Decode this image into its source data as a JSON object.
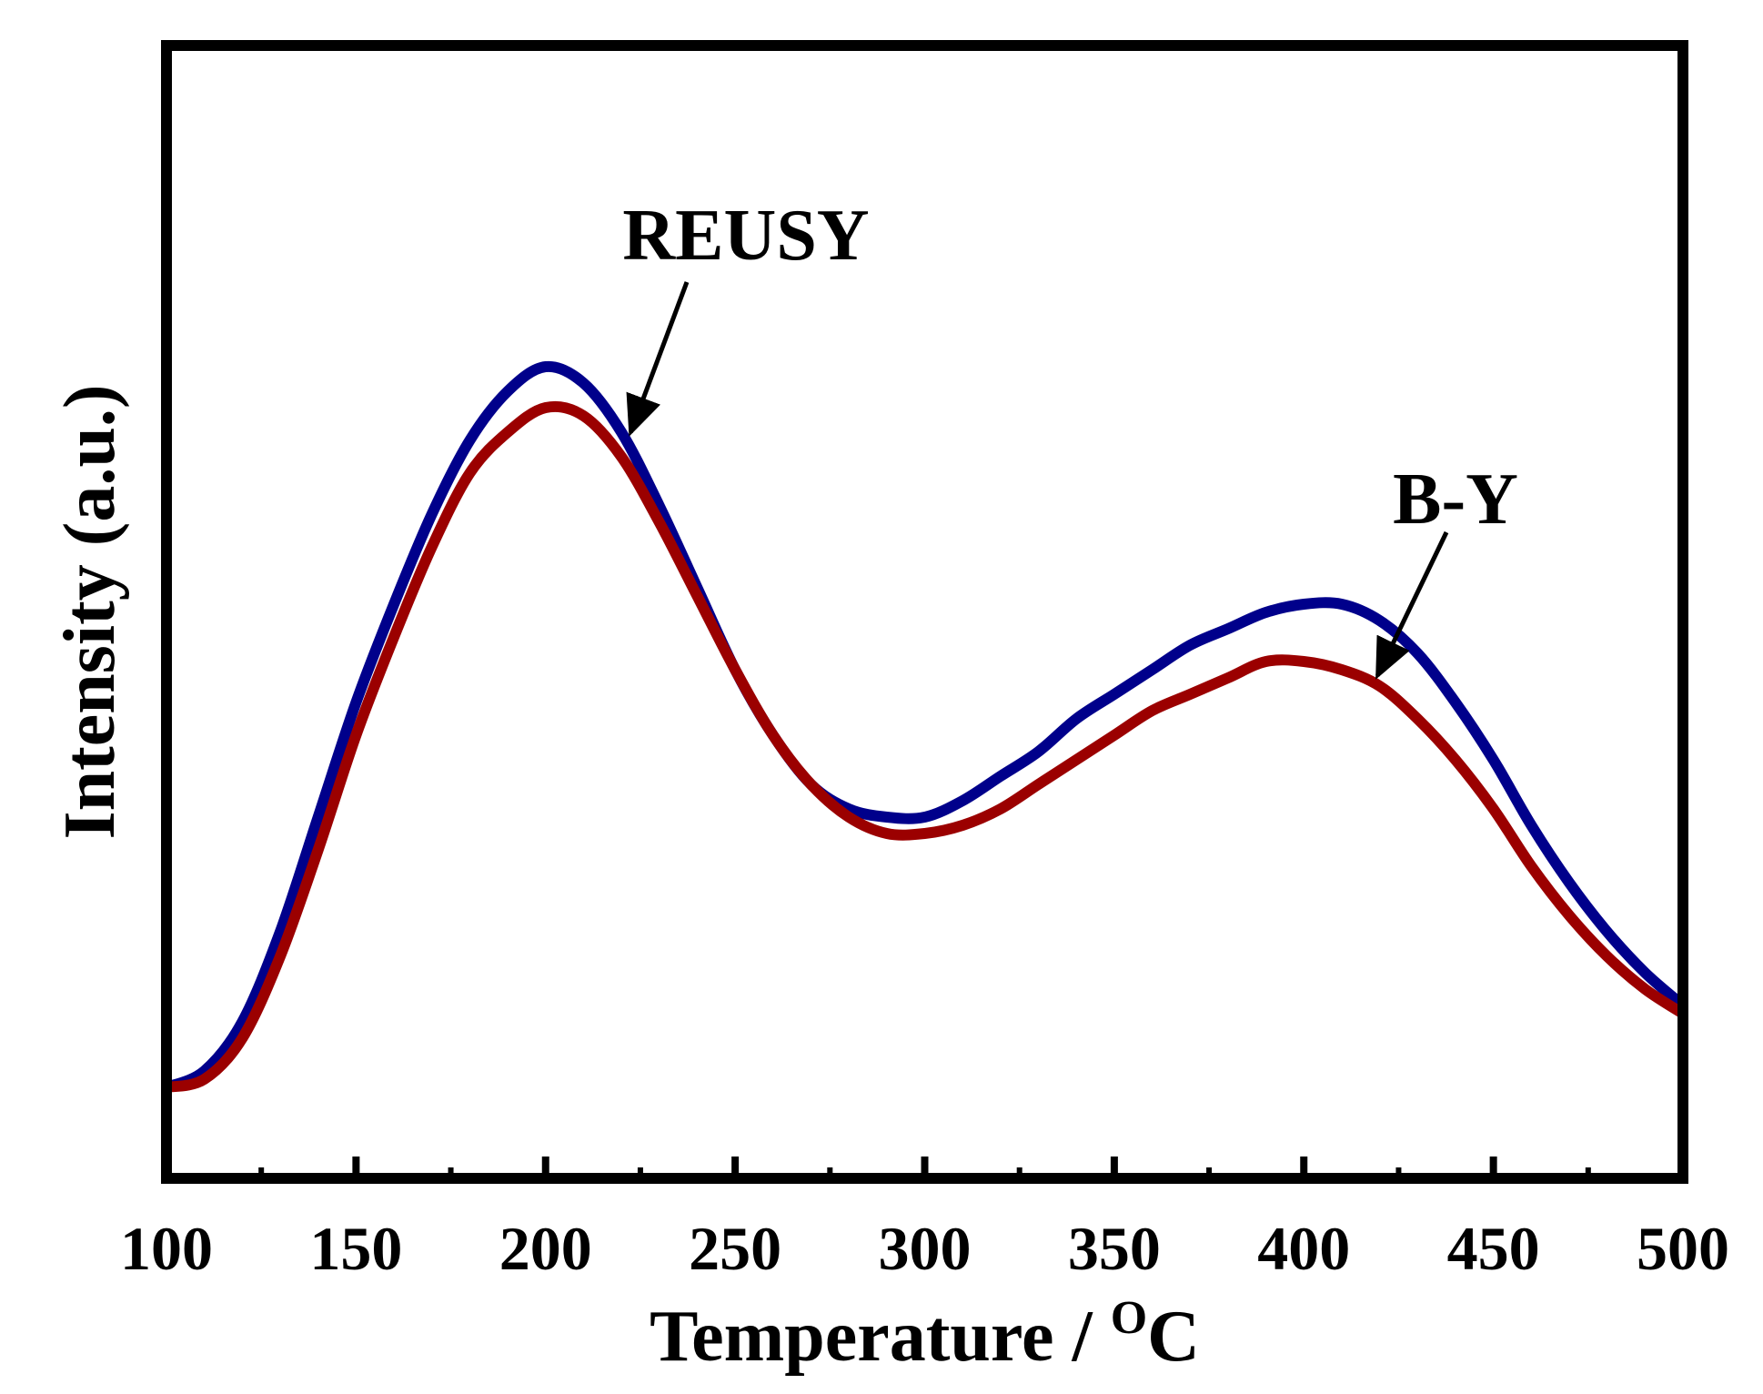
{
  "chart_data": {
    "type": "line",
    "title": "",
    "xlabel": "Temperature / ",
    "xlabel_unit_sup": "O",
    "xlabel_unit": "C",
    "ylabel": "Intensity (a.u.)",
    "xlim": [
      100,
      500
    ],
    "ylim": [
      0,
      100
    ],
    "xticks": [
      100,
      150,
      200,
      250,
      300,
      350,
      400,
      450,
      500
    ],
    "xtick_labels": [
      "100",
      "150",
      "200",
      "250",
      "300",
      "350",
      "400",
      "450",
      "500"
    ],
    "yticks_shown": false,
    "grid": false,
    "series": [
      {
        "name": "REUSY",
        "color": "#00008B",
        "x": [
          100,
          110,
          120,
          130,
          140,
          150,
          160,
          170,
          180,
          190,
          200,
          210,
          220,
          230,
          240,
          250,
          260,
          270,
          280,
          290,
          300,
          310,
          320,
          330,
          340,
          350,
          360,
          370,
          380,
          390,
          400,
          410,
          420,
          430,
          440,
          450,
          460,
          470,
          480,
          490,
          500
        ],
        "y": [
          5,
          7,
          13,
          24,
          38,
          52,
          64,
          75,
          84,
          90,
          93,
          91,
          85,
          76,
          66,
          56,
          48,
          42,
          39,
          38,
          38,
          40,
          43,
          46,
          50,
          53,
          56,
          59,
          61,
          63,
          64,
          64,
          62,
          58,
          52,
          45,
          37,
          30,
          24,
          19,
          15
        ]
      },
      {
        "name": "B-Y",
        "color": "#9B0000",
        "x": [
          100,
          110,
          120,
          130,
          140,
          150,
          160,
          170,
          180,
          190,
          200,
          210,
          220,
          230,
          240,
          250,
          260,
          270,
          280,
          290,
          300,
          310,
          320,
          330,
          340,
          350,
          360,
          370,
          380,
          390,
          400,
          410,
          420,
          430,
          440,
          450,
          460,
          470,
          480,
          490,
          500
        ],
        "y": [
          5,
          6,
          11,
          21,
          34,
          48,
          60,
          71,
          80,
          85,
          88,
          87,
          82,
          74,
          65,
          56,
          48,
          42,
          38,
          36,
          36,
          37,
          39,
          42,
          45,
          48,
          51,
          53,
          55,
          57,
          57,
          56,
          54,
          50,
          45,
          39,
          32,
          26,
          21,
          17,
          14
        ]
      }
    ],
    "annotations": [
      {
        "text": "REUSY",
        "target_series": "REUSY",
        "arrow_to_x": 221
      },
      {
        "text": "B-Y",
        "target_series": "B-Y",
        "arrow_to_x": 418
      }
    ]
  }
}
